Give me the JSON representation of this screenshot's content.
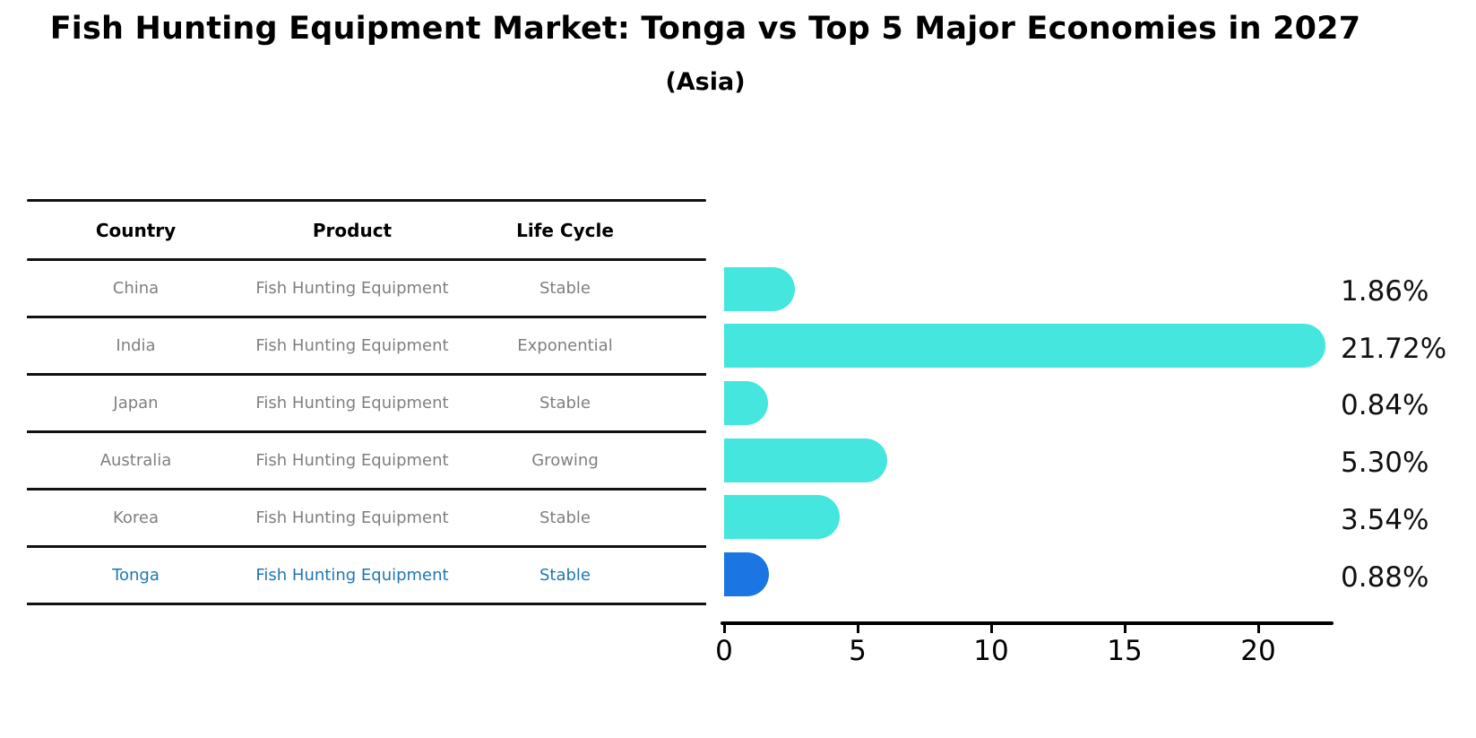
{
  "title": "Fish Hunting Equipment Market: Tonga vs Top 5 Major Economies in 2027",
  "subtitle": "(Asia)",
  "table": {
    "headers": [
      "Country",
      "Product",
      "Life Cycle"
    ],
    "rows": [
      {
        "country": "China",
        "product": "Fish Hunting Equipment",
        "life_cycle": "Stable",
        "highlight": false
      },
      {
        "country": "India",
        "product": "Fish Hunting Equipment",
        "life_cycle": "Exponential",
        "highlight": false
      },
      {
        "country": "Japan",
        "product": "Fish Hunting Equipment",
        "life_cycle": "Stable",
        "highlight": false
      },
      {
        "country": "Australia",
        "product": "Fish Hunting Equipment",
        "life_cycle": "Growing",
        "highlight": false
      },
      {
        "country": "Korea",
        "product": "Fish Hunting Equipment",
        "life_cycle": "Stable",
        "highlight": false
      },
      {
        "country": "Tonga",
        "product": "Fish Hunting Equipment",
        "life_cycle": "Stable",
        "highlight": true
      }
    ]
  },
  "chart_data": {
    "type": "bar",
    "orientation": "horizontal",
    "title": "Fish Hunting Equipment Market: Tonga vs Top 5 Major Economies in 2027",
    "subtitle": "(Asia)",
    "categories": [
      "China",
      "India",
      "Japan",
      "Australia",
      "Korea",
      "Tonga"
    ],
    "values": [
      1.86,
      21.72,
      0.84,
      5.3,
      3.54,
      0.88
    ],
    "value_labels": [
      "1.86%",
      "21.72%",
      "0.84%",
      "5.30%",
      "3.54%",
      "0.88%"
    ],
    "x_ticks": [
      0,
      5,
      10,
      15,
      20
    ],
    "xlim": [
      0,
      22.8
    ],
    "grid": false,
    "legend": "none",
    "bar_color": "#45E6DE",
    "highlight_color": "#1B76E3",
    "highlight_index": 5
  },
  "colors": {
    "title_text": "#000000",
    "header_text": "#000000",
    "cell_text": "#7f7f7f",
    "highlight_text": "#1F77B4",
    "table_line": "#111111",
    "axis": "#000000"
  }
}
